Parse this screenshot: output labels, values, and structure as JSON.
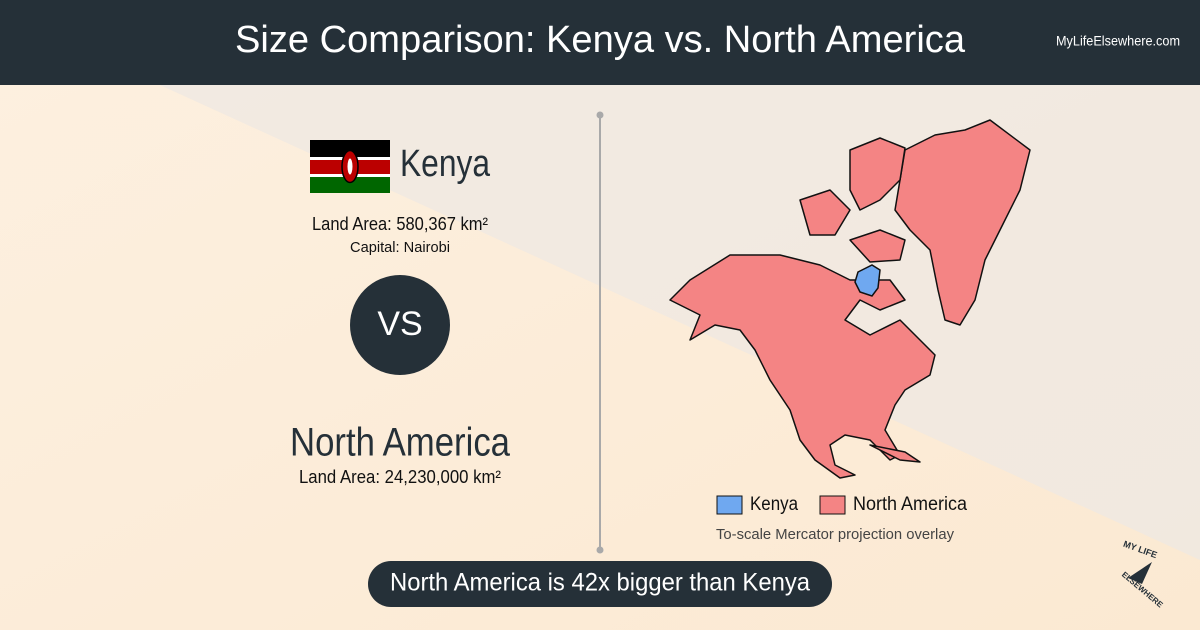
{
  "header": {
    "title": "Size Comparison: Kenya vs. North America",
    "site": "MyLifeElsewhere.com"
  },
  "first": {
    "name": "Kenya",
    "land_area": "Land Area: 580,367 km²",
    "capital": "Capital: Nairobi"
  },
  "versus": "VS",
  "second": {
    "name": "North America",
    "land_area": "Land Area: 24,230,000 km²"
  },
  "legend": [
    "Kenya",
    "North America"
  ],
  "note": "To-scale Mercator projection overlay",
  "footer": "North America is 42x bigger than Kenya",
  "logo": [
    "MY LIFE",
    "ELSEWHERE"
  ]
}
